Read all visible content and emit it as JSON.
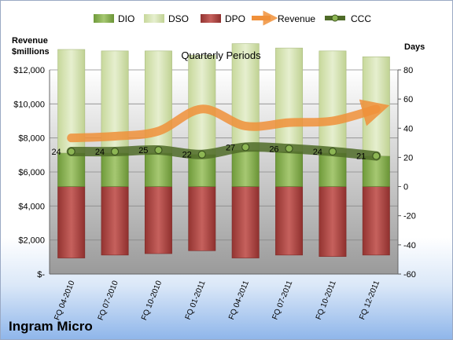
{
  "company": "Ingram Micro",
  "chart_data": {
    "type": "bar",
    "title": "Quarterly Periods",
    "left_axis_label": "Revenue\n$millions",
    "right_axis_label": "Days",
    "categories": [
      "FQ 04-2010",
      "FQ 07-2010",
      "FQ 10-2010",
      "FQ 01-2011",
      "FQ 04-2011",
      "FQ 07-2011",
      "FQ 10-2011",
      "FQ 12-2011"
    ],
    "left_ticks": [
      "$12,000",
      "$10,000",
      "$8,000",
      "$6,000",
      "$4,000",
      "$2,000",
      "$-"
    ],
    "left_tick_values": [
      12000,
      10000,
      8000,
      6000,
      4000,
      2000,
      0
    ],
    "right_ticks": [
      80,
      60,
      40,
      20,
      0,
      -20,
      -40,
      -60
    ],
    "left_ylim": [
      0,
      12000
    ],
    "right_ylim": [
      -60,
      80
    ],
    "legend_position": "top",
    "series": [
      {
        "name": "DIO",
        "kind": "bar",
        "axis": "right",
        "color": "#8db654",
        "values": [
          23,
          23,
          23,
          22,
          25,
          24,
          23,
          21
        ]
      },
      {
        "name": "DSO",
        "kind": "bar",
        "axis": "right",
        "color": "#d7e4b8",
        "values": [
          71,
          70,
          70,
          68,
          73,
          71,
          70,
          68
        ]
      },
      {
        "name": "DPO",
        "kind": "bar",
        "axis": "right",
        "color": "#b24a47",
        "values": [
          -49,
          -47,
          -46,
          -44,
          -49,
          -47,
          -48,
          -47
        ]
      },
      {
        "name": "Revenue",
        "kind": "line",
        "axis": "left",
        "color": "#f0903a",
        "values": [
          8000,
          8100,
          8400,
          9700,
          8700,
          8900,
          9000,
          9700
        ]
      },
      {
        "name": "CCC",
        "kind": "line",
        "axis": "right",
        "color": "#4f6b28",
        "values": [
          24,
          24,
          25,
          22,
          27,
          26,
          24,
          21
        ]
      }
    ]
  }
}
